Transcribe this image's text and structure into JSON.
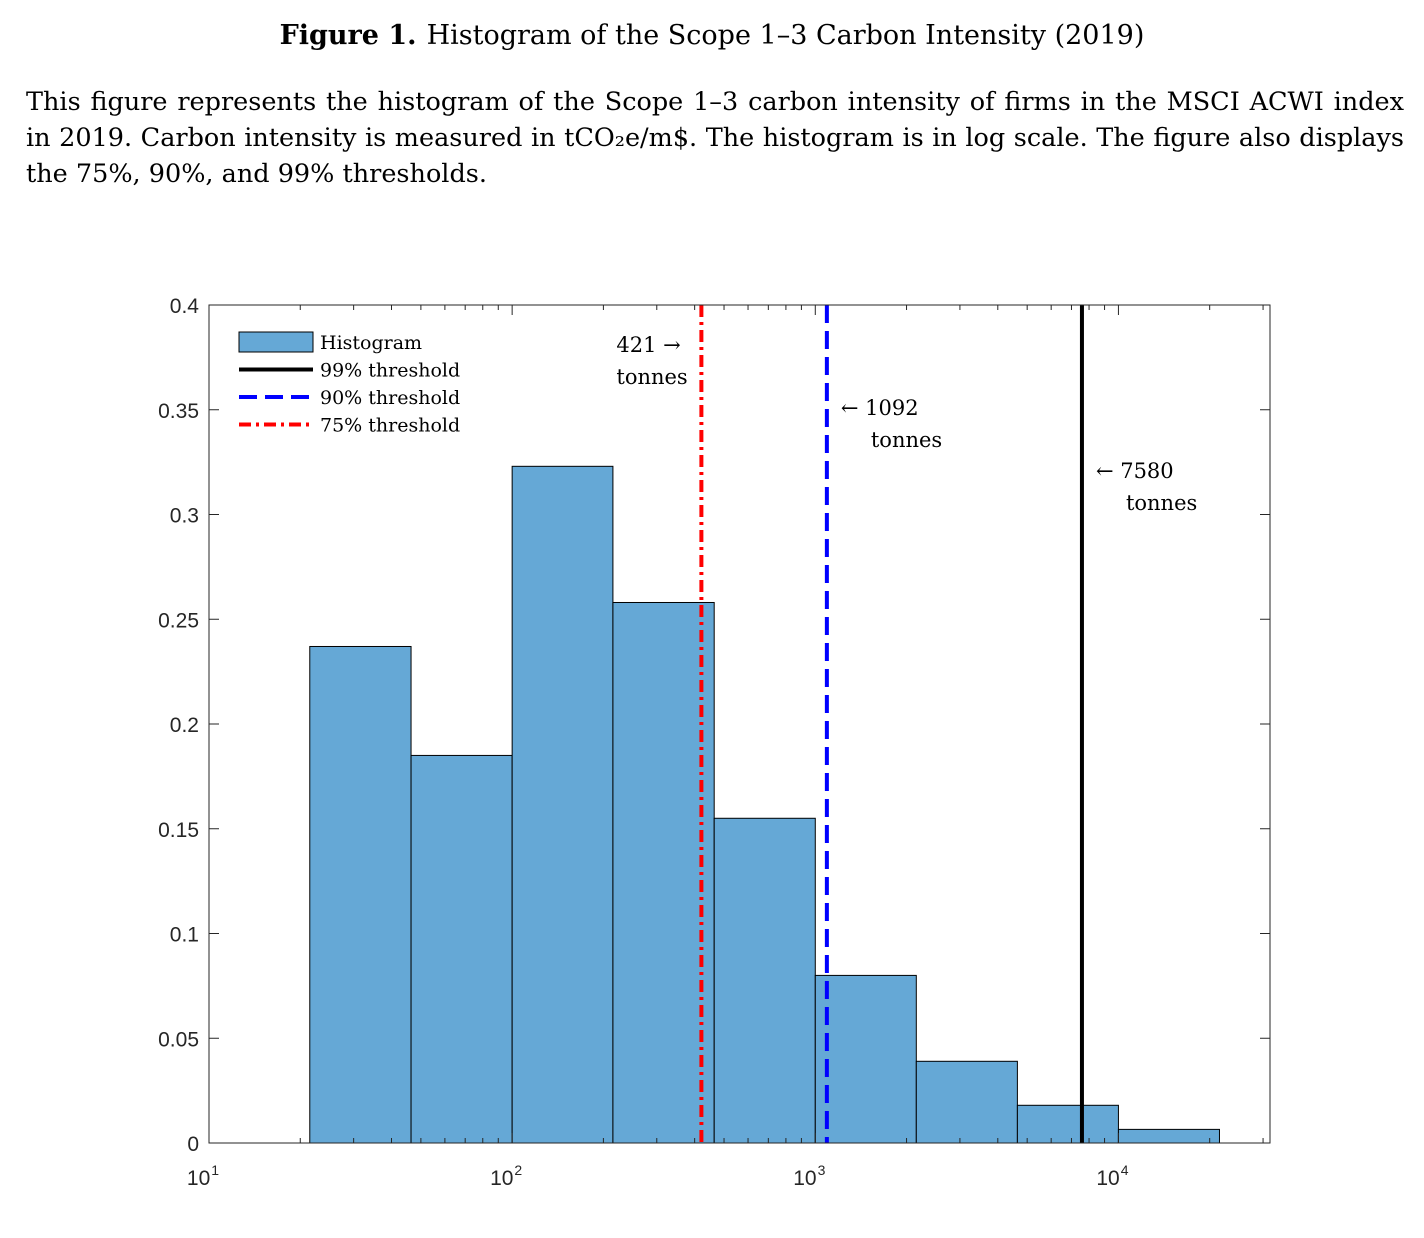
{
  "caption": {
    "figure_label": "Figure 1.",
    "title": "Histogram of the Scope 1–3 Carbon Intensity (2019)",
    "body": "This figure represents the histogram of the Scope 1–3 carbon intensity of firms in the MSCI ACWI index in 2019. Carbon intensity is measured in tCO₂e/m$. The histogram is in log scale. The figure also displays the 75%, 90%, and 99% thresholds."
  },
  "chart_data": {
    "type": "bar",
    "x_scale": "log",
    "xlim": [
      10,
      31623
    ],
    "ylim": [
      0,
      0.4
    ],
    "y_ticks": [
      0,
      0.05,
      0.1,
      0.15,
      0.2,
      0.25,
      0.3,
      0.35,
      0.4
    ],
    "y_tick_labels": [
      "0",
      "0.05",
      "0.1",
      "0.15",
      "0.2",
      "0.25",
      "0.3",
      "0.35",
      "0.4"
    ],
    "x_ticks": [
      {
        "value": 10,
        "base": "10",
        "exp": "1"
      },
      {
        "value": 100,
        "base": "10",
        "exp": "2"
      },
      {
        "value": 1000,
        "base": "10",
        "exp": "3"
      },
      {
        "value": 10000,
        "base": "10",
        "exp": "4"
      }
    ],
    "bins": [
      {
        "from": 21.5,
        "to": 46.4,
        "value": 0.237
      },
      {
        "from": 46.4,
        "to": 100,
        "value": 0.185
      },
      {
        "from": 100,
        "to": 215,
        "value": 0.323
      },
      {
        "from": 215,
        "to": 464,
        "value": 0.258
      },
      {
        "from": 464,
        "to": 1000,
        "value": 0.155
      },
      {
        "from": 1000,
        "to": 2154,
        "value": 0.08
      },
      {
        "from": 2154,
        "to": 4642,
        "value": 0.039
      },
      {
        "from": 4642,
        "to": 10000,
        "value": 0.018
      },
      {
        "from": 10000,
        "to": 21544,
        "value": 0.0065
      }
    ],
    "thresholds": [
      {
        "name": "75% threshold",
        "value": 421,
        "color": "#ff0000",
        "style": "dashdot",
        "annotation": [
          "421 →",
          "tonnes"
        ],
        "label_side": "left"
      },
      {
        "name": "90% threshold",
        "value": 1092,
        "color": "#0000ff",
        "style": "dashed",
        "annotation": [
          "← 1092",
          "tonnes"
        ],
        "label_side": "right"
      },
      {
        "name": "99% threshold",
        "value": 7580,
        "color": "#000000",
        "style": "solid",
        "annotation": [
          "← 7580",
          "tonnes"
        ],
        "label_side": "right"
      }
    ],
    "legend": {
      "placement": "top-left",
      "entries": [
        "Histogram",
        "99% threshold",
        "90% threshold",
        "75% threshold"
      ]
    },
    "bar_color": "#65a8d6",
    "grid": false
  }
}
